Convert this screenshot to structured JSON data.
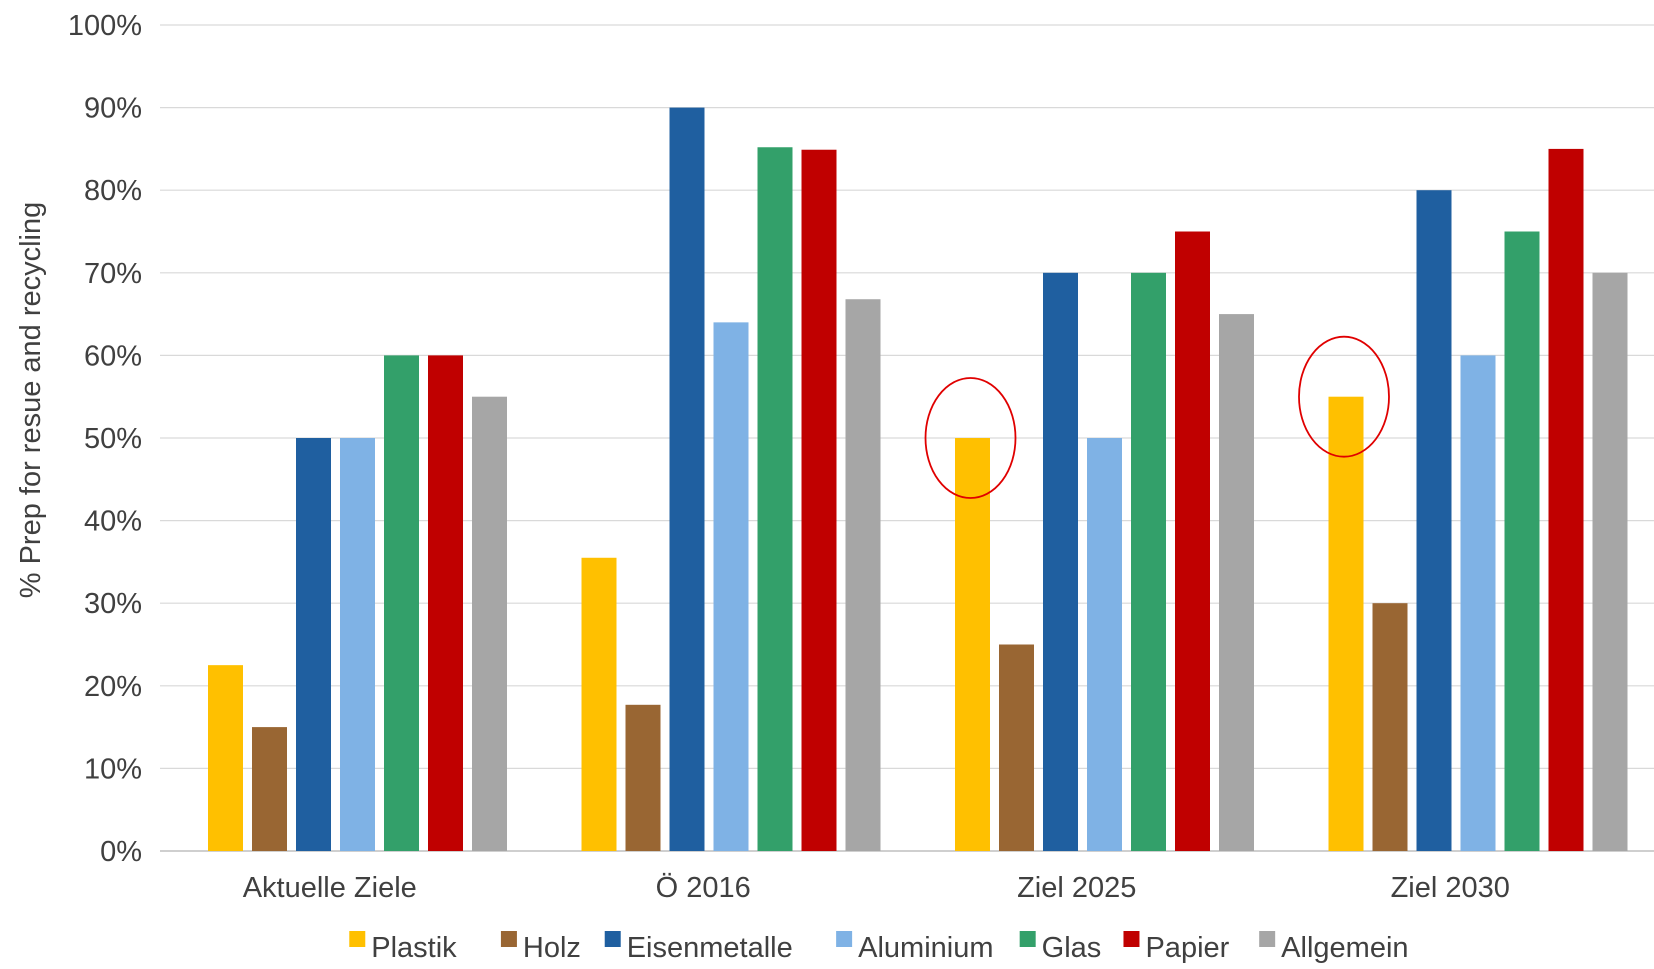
{
  "chart_data": {
    "type": "bar",
    "title": "",
    "xlabel": "",
    "ylabel": "% Prep for resue and recycling",
    "ylim": [
      0,
      100
    ],
    "yticks": [
      0,
      10,
      20,
      30,
      40,
      50,
      60,
      70,
      80,
      90,
      100
    ],
    "ytick_suffix": "%",
    "grid": "horizontal",
    "legend_position": "bottom",
    "categories": [
      "Aktuelle Ziele",
      "Ö 2016",
      "Ziel 2025",
      "Ziel 2030"
    ],
    "series": [
      {
        "name": "Plastik",
        "color": "#FFC000",
        "values": [
          22.5,
          35.5,
          50,
          55
        ]
      },
      {
        "name": "Holz",
        "color": "#996633",
        "values": [
          15,
          17.7,
          25,
          30
        ]
      },
      {
        "name": "Eisenmetalle",
        "color": "#1F5FA0",
        "values": [
          50,
          90,
          70,
          80
        ]
      },
      {
        "name": "Aluminium",
        "color": "#7FB2E5",
        "values": [
          50,
          64,
          50,
          60
        ]
      },
      {
        "name": "Glas",
        "color": "#33A06A",
        "values": [
          60,
          85.2,
          70,
          75
        ]
      },
      {
        "name": "Papier",
        "color": "#C00000",
        "values": [
          60,
          84.9,
          75,
          85
        ]
      },
      {
        "name": "Allgemein",
        "color": "#A6A6A6",
        "values": [
          55,
          66.8,
          65,
          70
        ]
      }
    ],
    "annotations": [
      {
        "shape": "ellipse",
        "color": "#E00000",
        "series": "Plastik",
        "category": "Ziel 2025",
        "value": 50
      },
      {
        "shape": "ellipse",
        "color": "#E00000",
        "series": "Plastik",
        "category": "Ziel 2030",
        "value": 55
      }
    ],
    "gridline_color": "#D9D9D9"
  }
}
